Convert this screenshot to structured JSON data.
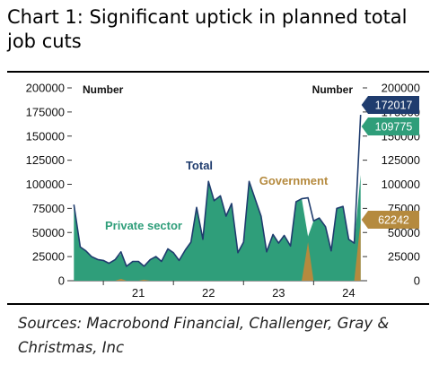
{
  "title": "Chart 1: Significant uptick in planned total job cuts",
  "source": "Sources: Macrobond Financial, Challenger, Gray & Christmas, Inc",
  "chart_data": {
    "type": "area",
    "left_unit": "Number",
    "right_unit": "Number",
    "ylim": [
      0,
      200000
    ],
    "yticks": [
      0,
      25000,
      50000,
      75000,
      100000,
      125000,
      150000,
      175000,
      200000
    ],
    "xlim": [
      2020.55,
      2024.7
    ],
    "xticks": [
      {
        "label": "21",
        "pos": 2021.5
      },
      {
        "label": "22",
        "pos": 2022.5
      },
      {
        "label": "23",
        "pos": 2023.5
      },
      {
        "label": "24",
        "pos": 2024.5
      }
    ],
    "grid": false,
    "series": [
      {
        "name": "Total",
        "color": "#1f3c6e",
        "x": [
          2020.58,
          2020.67,
          2020.75,
          2020.83,
          2020.92,
          2021.0,
          2021.08,
          2021.17,
          2021.25,
          2021.33,
          2021.42,
          2021.5,
          2021.58,
          2021.67,
          2021.75,
          2021.83,
          2021.92,
          2022.0,
          2022.08,
          2022.17,
          2022.25,
          2022.33,
          2022.42,
          2022.5,
          2022.58,
          2022.67,
          2022.75,
          2022.83,
          2022.92,
          2023.0,
          2023.08,
          2023.17,
          2023.25,
          2023.33,
          2023.42,
          2023.5,
          2023.58,
          2023.67,
          2023.75,
          2023.83,
          2023.92,
          2024.0,
          2024.08,
          2024.17,
          2024.25,
          2024.33,
          2024.42,
          2024.5,
          2024.58,
          2024.67
        ],
        "values": [
          79000,
          35000,
          31000,
          25000,
          22000,
          21000,
          18000,
          22000,
          30000,
          15000,
          20000,
          20000,
          15000,
          22000,
          25000,
          20000,
          33000,
          29000,
          21000,
          32000,
          40000,
          76000,
          43000,
          103000,
          83000,
          88000,
          67000,
          80000,
          29000,
          40000,
          103000,
          84000,
          67000,
          30000,
          48000,
          39000,
          47000,
          36000,
          82000,
          85000,
          86000,
          62000,
          65000,
          56000,
          31000,
          75000,
          77000,
          43000,
          39000,
          172017
        ]
      },
      {
        "name": "Private sector",
        "color": "#2f9e7a",
        "x": [
          2020.58,
          2020.67,
          2020.75,
          2020.83,
          2020.92,
          2021.0,
          2021.08,
          2021.17,
          2021.25,
          2021.33,
          2021.42,
          2021.5,
          2021.58,
          2021.67,
          2021.75,
          2021.83,
          2021.92,
          2022.0,
          2022.08,
          2022.17,
          2022.25,
          2022.33,
          2022.42,
          2022.5,
          2022.58,
          2022.67,
          2022.75,
          2022.83,
          2022.92,
          2023.0,
          2023.08,
          2023.17,
          2023.25,
          2023.33,
          2023.42,
          2023.5,
          2023.58,
          2023.67,
          2023.75,
          2023.83,
          2023.92,
          2024.0,
          2024.08,
          2024.17,
          2024.25,
          2024.33,
          2024.42,
          2024.5,
          2024.58,
          2024.67
        ],
        "values": [
          79000,
          35000,
          31000,
          25000,
          22000,
          21000,
          18000,
          22000,
          28000,
          15000,
          20000,
          20000,
          14000,
          22000,
          25000,
          20000,
          33000,
          29000,
          21000,
          32000,
          40000,
          76000,
          43000,
          103000,
          83000,
          88000,
          67000,
          80000,
          29000,
          40000,
          103000,
          84000,
          67000,
          30000,
          48000,
          39000,
          47000,
          36000,
          82000,
          85000,
          46000,
          62000,
          65000,
          56000,
          31000,
          75000,
          77000,
          43000,
          39000,
          109775
        ]
      },
      {
        "name": "Government",
        "color": "#b58a3e",
        "x": [
          2020.58,
          2020.67,
          2020.75,
          2020.83,
          2020.92,
          2021.0,
          2021.08,
          2021.17,
          2021.25,
          2021.33,
          2021.42,
          2021.5,
          2021.58,
          2021.67,
          2021.75,
          2021.83,
          2021.92,
          2022.0,
          2022.08,
          2022.17,
          2022.25,
          2022.33,
          2022.42,
          2022.5,
          2022.58,
          2022.67,
          2022.75,
          2022.83,
          2022.92,
          2023.0,
          2023.08,
          2023.17,
          2023.25,
          2023.33,
          2023.42,
          2023.5,
          2023.58,
          2023.67,
          2023.75,
          2023.83,
          2023.92,
          2024.0,
          2024.08,
          2024.17,
          2024.25,
          2024.33,
          2024.42,
          2024.5,
          2024.58,
          2024.67
        ],
        "values": [
          0,
          0,
          0,
          0,
          0,
          0,
          0,
          0,
          2000,
          0,
          0,
          0,
          1000,
          0,
          0,
          0,
          0,
          0,
          0,
          0,
          0,
          0,
          0,
          0,
          0,
          0,
          0,
          0,
          0,
          0,
          0,
          0,
          0,
          0,
          0,
          0,
          0,
          0,
          0,
          0,
          40000,
          0,
          0,
          0,
          0,
          0,
          0,
          0,
          0,
          62242
        ]
      }
    ],
    "end_labels": [
      "172017",
      "109775",
      "62242"
    ]
  }
}
